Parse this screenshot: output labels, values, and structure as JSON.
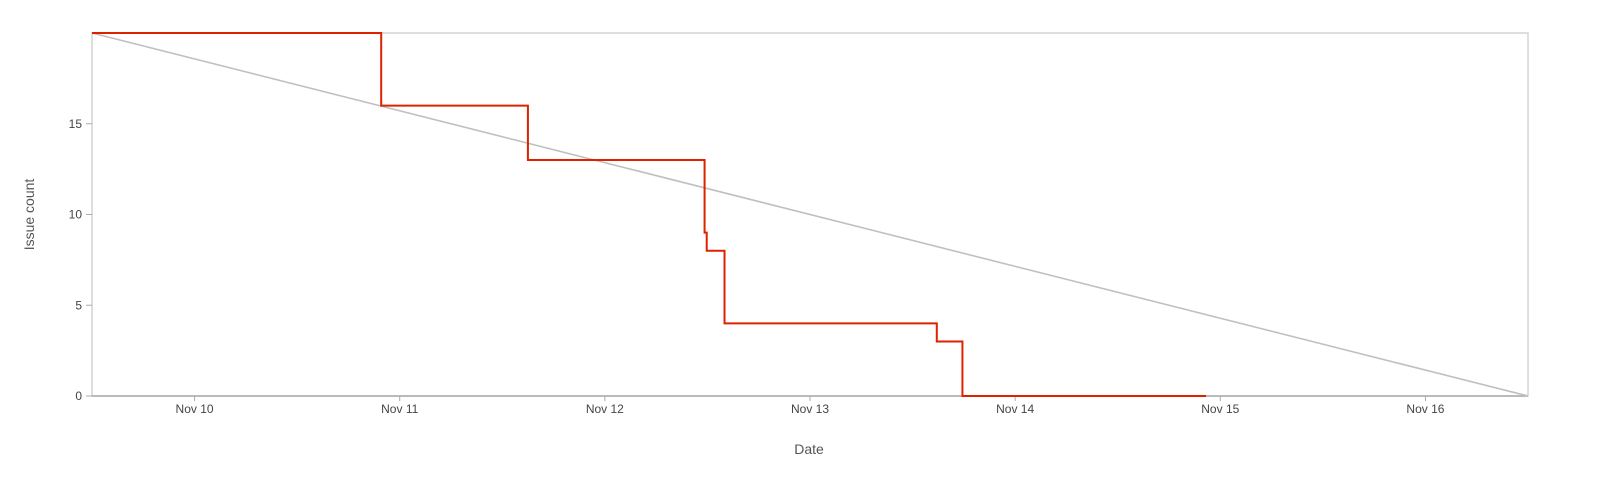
{
  "chart_data": {
    "type": "line",
    "xlabel": "Date",
    "ylabel": "Issue count",
    "x_ticks": [
      {
        "label": "Nov 10",
        "x": "2023-11-10"
      },
      {
        "label": "Nov 11",
        "x": "2023-11-11"
      },
      {
        "label": "Nov 12",
        "x": "2023-11-12"
      },
      {
        "label": "Nov 13",
        "x": "2023-11-13"
      },
      {
        "label": "Nov 14",
        "x": "2023-11-14"
      },
      {
        "label": "Nov 15",
        "x": "2023-11-15"
      },
      {
        "label": "Nov 16",
        "x": "2023-11-16"
      }
    ],
    "y_ticks": [
      0,
      5,
      10,
      15
    ],
    "xlim": [
      "2023-11-09 12:00",
      "2023-11-16 12:00"
    ],
    "ylim": [
      0,
      20
    ],
    "grid": false,
    "series": [
      {
        "color": "#dd2200",
        "step": true,
        "points": [
          {
            "x": "2023-11-09 12:00",
            "y": 20
          },
          {
            "x": "2023-11-10 21:50",
            "y": 16
          },
          {
            "x": "2023-11-11 15:00",
            "y": 13
          },
          {
            "x": "2023-11-12 11:40",
            "y": 9
          },
          {
            "x": "2023-11-12 11:55",
            "y": 8
          },
          {
            "x": "2023-11-12 14:00",
            "y": 4
          },
          {
            "x": "2023-11-13 14:50",
            "y": 3
          },
          {
            "x": "2023-11-13 17:50",
            "y": 0
          },
          {
            "x": "2023-11-14 22:20",
            "y": 0
          }
        ]
      },
      {
        "color": "#c0c0c0",
        "step": false,
        "points": [
          {
            "x": "2023-11-09 12:00",
            "y": 20
          },
          {
            "x": "2023-11-16 12:00",
            "y": 0
          }
        ]
      }
    ]
  }
}
